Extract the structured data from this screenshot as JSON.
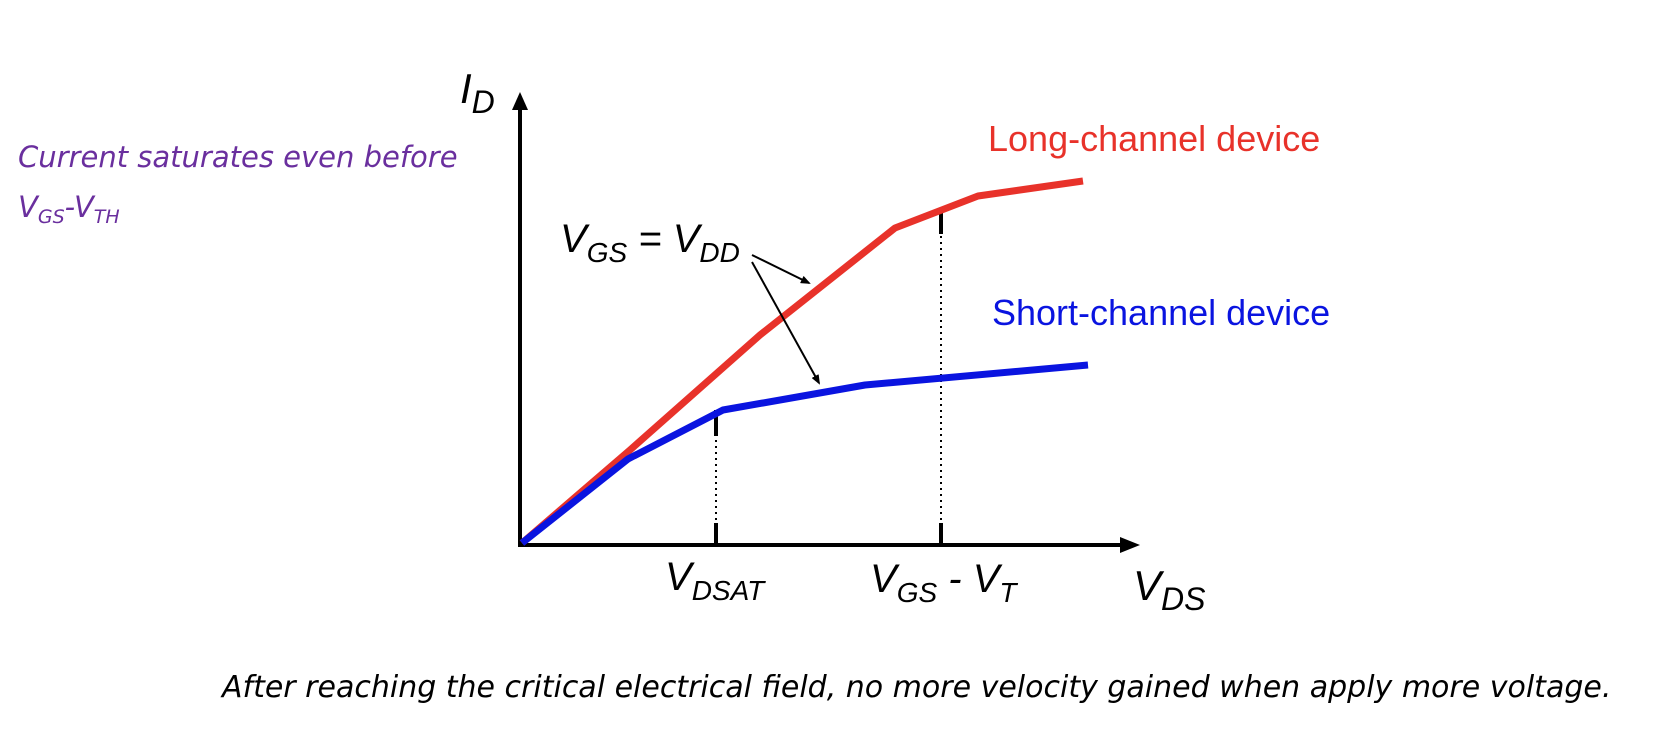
{
  "note": {
    "line1": "Current saturates even before",
    "v": "V",
    "gs": "GS",
    "dash": "-",
    "th": "TH"
  },
  "axes": {
    "y_main": "I",
    "y_sub": "D",
    "x_main": "V",
    "x_sub": "DS"
  },
  "ticks": {
    "vdsat_main": "V",
    "vdsat_sub": "DSAT",
    "vgs_main": "V",
    "vgs_sub": "GS",
    "vgs_mid": " - V",
    "vt_sub": "T"
  },
  "annotation": {
    "v1": "V",
    "gs": "GS",
    "eq": " = V",
    "dd": "DD"
  },
  "legend": {
    "long": "Long-channel device",
    "short": "Short-channel device"
  },
  "colors": {
    "long": "#e8322a",
    "short": "#0a14e0",
    "note": "#6a2f9e"
  },
  "caption": "After reaching the critical electrical field, no more velocity gained when apply more voltage."
}
